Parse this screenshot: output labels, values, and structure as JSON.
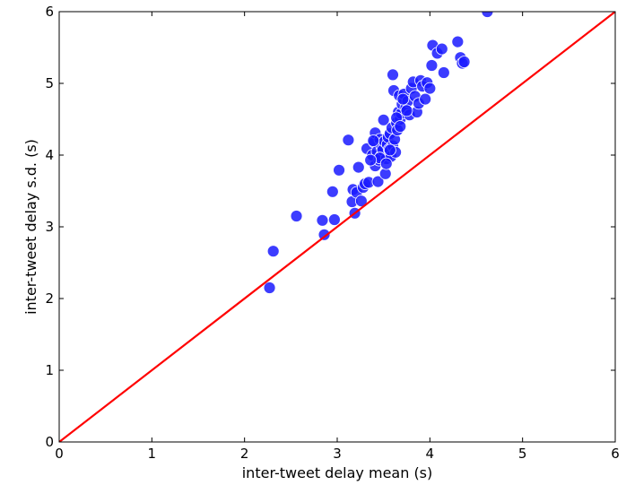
{
  "chart_data": {
    "type": "scatter",
    "title": "",
    "xlabel": "inter-tweet delay mean (s)",
    "ylabel": "inter-tweet delay s.d. (s)",
    "xlim": [
      0,
      6
    ],
    "ylim": [
      0,
      6
    ],
    "xticks": [
      "0",
      "1",
      "2",
      "3",
      "4",
      "5",
      "6"
    ],
    "yticks": [
      "0",
      "1",
      "2",
      "3",
      "4",
      "5",
      "6"
    ],
    "grid": false,
    "legend": "none",
    "colors": {
      "points": "#1a1aff",
      "point_edge": "#ffffff",
      "reference_line": "#ff0000",
      "axes": "#000000"
    },
    "reference_line": {
      "from": [
        0,
        0
      ],
      "to": [
        6,
        6
      ]
    },
    "points": [
      [
        2.27,
        2.15
      ],
      [
        2.31,
        2.66
      ],
      [
        2.56,
        3.15
      ],
      [
        2.84,
        3.09
      ],
      [
        2.86,
        2.89
      ],
      [
        2.95,
        3.49
      ],
      [
        2.97,
        3.1
      ],
      [
        3.02,
        3.79
      ],
      [
        3.12,
        4.21
      ],
      [
        3.16,
        3.35
      ],
      [
        3.17,
        3.52
      ],
      [
        3.19,
        3.19
      ],
      [
        3.21,
        3.48
      ],
      [
        3.23,
        3.83
      ],
      [
        3.26,
        3.36
      ],
      [
        3.28,
        3.55
      ],
      [
        3.3,
        3.6
      ],
      [
        3.32,
        4.09
      ],
      [
        3.34,
        3.62
      ],
      [
        3.38,
        4.0
      ],
      [
        3.4,
        4.18
      ],
      [
        3.41,
        3.85
      ],
      [
        3.41,
        4.31
      ],
      [
        3.43,
        4.05
      ],
      [
        3.44,
        3.63
      ],
      [
        3.45,
        3.93
      ],
      [
        3.46,
        4.22
      ],
      [
        3.47,
        3.98
      ],
      [
        3.48,
        4.12
      ],
      [
        3.49,
        4.07
      ],
      [
        3.5,
        4.49
      ],
      [
        3.51,
        4.19
      ],
      [
        3.52,
        3.74
      ],
      [
        3.53,
        3.95
      ],
      [
        3.54,
        4.15
      ],
      [
        3.55,
        4.25
      ],
      [
        3.56,
        4.08
      ],
      [
        3.57,
        4.3
      ],
      [
        3.58,
        3.98
      ],
      [
        3.59,
        4.38
      ],
      [
        3.6,
        5.12
      ],
      [
        3.6,
        4.13
      ],
      [
        3.61,
        4.9
      ],
      [
        3.62,
        4.22
      ],
      [
        3.63,
        4.04
      ],
      [
        3.64,
        4.45
      ],
      [
        3.65,
        4.35
      ],
      [
        3.66,
        4.6
      ],
      [
        3.67,
        4.83
      ],
      [
        3.68,
        4.5
      ],
      [
        3.69,
        4.58
      ],
      [
        3.7,
        4.71
      ],
      [
        3.72,
        4.85
      ],
      [
        3.74,
        4.66
      ],
      [
        3.76,
        4.75
      ],
      [
        3.78,
        4.56
      ],
      [
        3.8,
        4.93
      ],
      [
        3.82,
        5.02
      ],
      [
        3.84,
        4.82
      ],
      [
        3.86,
        4.6
      ],
      [
        3.88,
        4.72
      ],
      [
        3.9,
        5.04
      ],
      [
        3.92,
        4.96
      ],
      [
        3.95,
        4.78
      ],
      [
        3.97,
        5.01
      ],
      [
        4.0,
        4.93
      ],
      [
        4.02,
        5.25
      ],
      [
        4.03,
        5.53
      ],
      [
        4.08,
        5.42
      ],
      [
        4.13,
        5.48
      ],
      [
        4.15,
        5.15
      ],
      [
        4.3,
        5.58
      ],
      [
        4.33,
        5.36
      ],
      [
        4.35,
        5.28
      ],
      [
        4.37,
        5.3
      ],
      [
        4.62,
        6.0
      ],
      [
        3.46,
        3.96
      ],
      [
        3.57,
        4.07
      ],
      [
        3.64,
        4.52
      ],
      [
        3.71,
        4.78
      ],
      [
        3.36,
        3.93
      ],
      [
        3.39,
        4.2
      ],
      [
        3.53,
        3.88
      ],
      [
        3.68,
        4.4
      ],
      [
        3.75,
        4.62
      ]
    ]
  }
}
